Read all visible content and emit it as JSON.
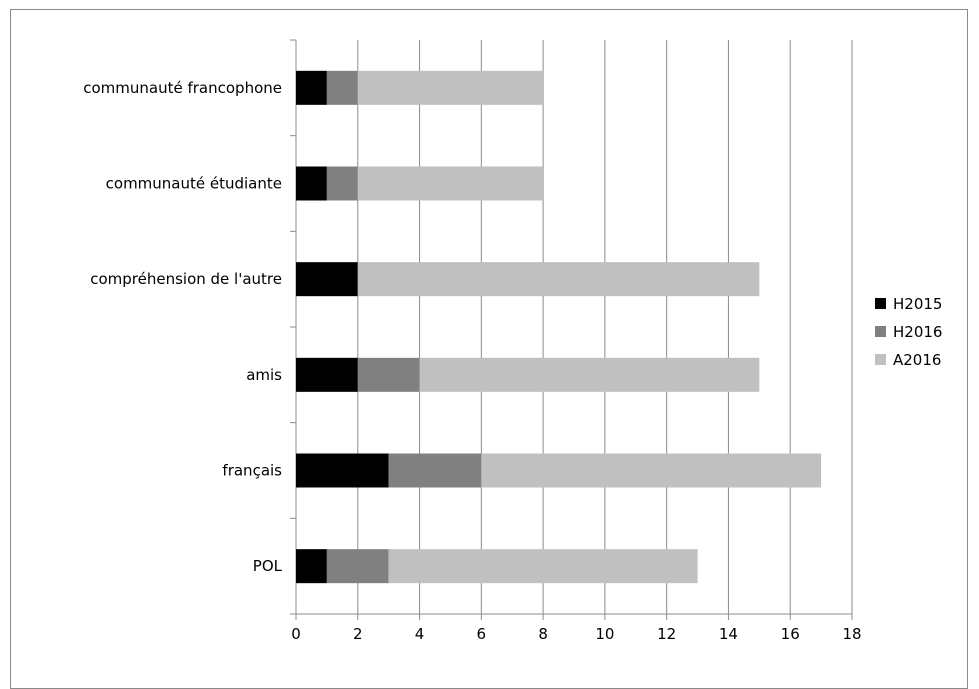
{
  "chart_data": {
    "type": "bar",
    "orientation": "horizontal",
    "stacked": true,
    "categories": [
      "POL",
      "français",
      "amis",
      "compréhension de l'autre",
      "communauté étudiante",
      "communauté francophone"
    ],
    "series": [
      {
        "name": "H2015",
        "values": [
          1,
          3,
          2,
          2,
          1,
          1
        ],
        "color": "#000000"
      },
      {
        "name": "H2016",
        "values": [
          2,
          3,
          2,
          0,
          1,
          1
        ],
        "color": "#808080"
      },
      {
        "name": "A2016",
        "values": [
          10,
          11,
          11,
          13,
          6,
          6
        ],
        "color": "#c0c0c0"
      }
    ],
    "xlim": [
      0,
      18
    ],
    "xticks": [
      0,
      2,
      4,
      6,
      8,
      10,
      12,
      14,
      16,
      18
    ],
    "grid": "vertical major gridlines",
    "legend_position": "right",
    "title": "",
    "xlabel": "",
    "ylabel": ""
  }
}
